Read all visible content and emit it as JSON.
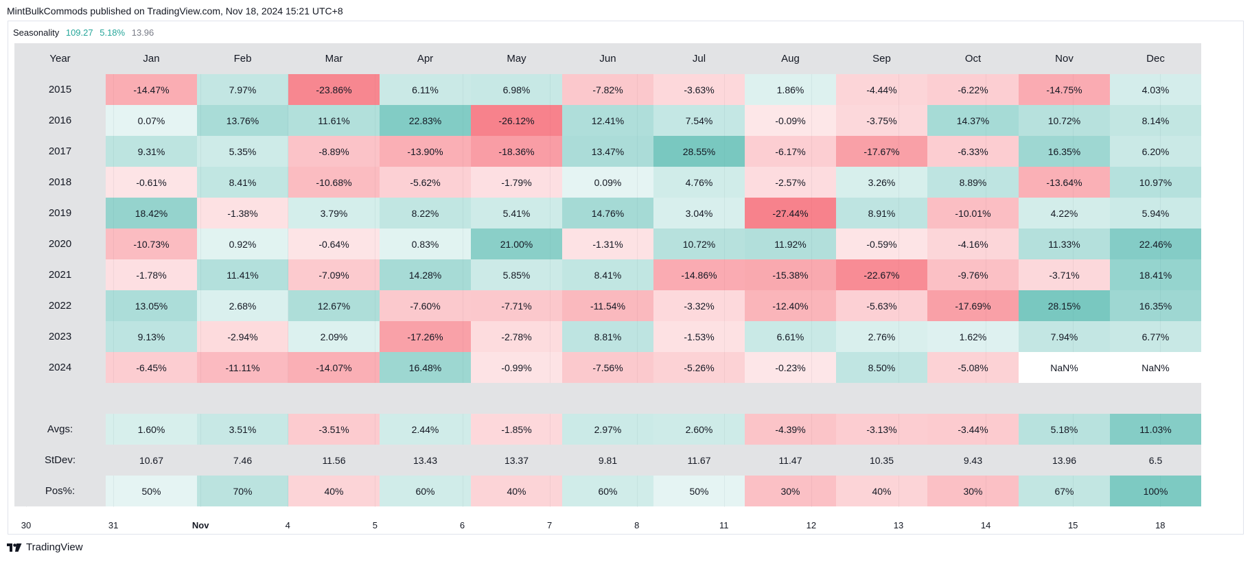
{
  "header": {
    "text": "MintBulkCommods published on TradingView.com, Nov 18, 2024 15:21 UTC+8"
  },
  "legend": {
    "name": "Seasonality",
    "value1": "109.27",
    "value2": "5.18%",
    "value3": "13.96"
  },
  "colors": {
    "positive": "#26a69a",
    "negative": "#f23645",
    "label_bg": "#e2e3e5"
  },
  "chart_data": {
    "type": "table",
    "title": "Seasonality",
    "corner_label": "Year",
    "columns": [
      "Jan",
      "Feb",
      "Mar",
      "Apr",
      "May",
      "Jun",
      "Jul",
      "Aug",
      "Sep",
      "Oct",
      "Nov",
      "Dec"
    ],
    "rows": [
      {
        "label": "2015",
        "values": [
          "-14.47%",
          "7.97%",
          "-23.86%",
          "6.11%",
          "6.98%",
          "-7.82%",
          "-3.63%",
          "1.86%",
          "-4.44%",
          "-6.22%",
          "-14.75%",
          "4.03%"
        ]
      },
      {
        "label": "2016",
        "values": [
          "0.07%",
          "13.76%",
          "11.61%",
          "22.83%",
          "-26.12%",
          "12.41%",
          "7.54%",
          "-0.09%",
          "-3.75%",
          "14.37%",
          "10.72%",
          "8.14%"
        ]
      },
      {
        "label": "2017",
        "values": [
          "9.31%",
          "5.35%",
          "-8.89%",
          "-13.90%",
          "-18.36%",
          "13.47%",
          "28.55%",
          "-6.17%",
          "-17.67%",
          "-6.33%",
          "16.35%",
          "6.20%"
        ]
      },
      {
        "label": "2018",
        "values": [
          "-0.61%",
          "8.41%",
          "-10.68%",
          "-5.62%",
          "-1.79%",
          "0.09%",
          "4.76%",
          "-2.57%",
          "3.26%",
          "8.89%",
          "-13.64%",
          "10.97%"
        ]
      },
      {
        "label": "2019",
        "values": [
          "18.42%",
          "-1.38%",
          "3.79%",
          "8.22%",
          "5.41%",
          "14.76%",
          "3.04%",
          "-27.44%",
          "8.91%",
          "-10.01%",
          "4.22%",
          "5.94%"
        ]
      },
      {
        "label": "2020",
        "values": [
          "-10.73%",
          "0.92%",
          "-0.64%",
          "0.83%",
          "21.00%",
          "-1.31%",
          "10.72%",
          "11.92%",
          "-0.59%",
          "-4.16%",
          "11.33%",
          "22.46%"
        ]
      },
      {
        "label": "2021",
        "values": [
          "-1.78%",
          "11.41%",
          "-7.09%",
          "14.28%",
          "5.85%",
          "8.41%",
          "-14.86%",
          "-15.38%",
          "-22.67%",
          "-9.76%",
          "-3.71%",
          "18.41%"
        ]
      },
      {
        "label": "2022",
        "values": [
          "13.05%",
          "2.68%",
          "12.67%",
          "-7.60%",
          "-7.71%",
          "-11.54%",
          "-3.32%",
          "-12.40%",
          "-5.63%",
          "-17.69%",
          "28.15%",
          "16.35%"
        ]
      },
      {
        "label": "2023",
        "values": [
          "9.13%",
          "-2.94%",
          "2.09%",
          "-17.26%",
          "-2.78%",
          "8.81%",
          "-1.53%",
          "6.61%",
          "2.76%",
          "1.62%",
          "7.94%",
          "6.77%"
        ]
      },
      {
        "label": "2024",
        "values": [
          "-6.45%",
          "-11.11%",
          "-14.07%",
          "16.48%",
          "-0.99%",
          "-7.56%",
          "-5.26%",
          "-0.23%",
          "8.50%",
          "-5.08%",
          "NaN%",
          "NaN%"
        ]
      }
    ],
    "summary": [
      {
        "label": "Avgs:",
        "values": [
          "1.60%",
          "3.51%",
          "-3.51%",
          "2.44%",
          "-1.85%",
          "2.97%",
          "2.60%",
          "-4.39%",
          "-3.13%",
          "-3.44%",
          "5.18%",
          "11.03%"
        ]
      },
      {
        "label": "StDev:",
        "values": [
          "10.67",
          "7.46",
          "11.56",
          "13.43",
          "13.37",
          "9.81",
          "11.67",
          "11.47",
          "10.35",
          "9.43",
          "13.96",
          "6.5"
        ]
      },
      {
        "label": "Pos%:",
        "values": [
          "50%",
          "70%",
          "40%",
          "60%",
          "40%",
          "60%",
          "50%",
          "30%",
          "40%",
          "30%",
          "67%",
          "100%"
        ]
      }
    ],
    "x_axis_labels": [
      "30",
      "31",
      "Nov",
      "4",
      "5",
      "6",
      "7",
      "8",
      "11",
      "12",
      "13",
      "14",
      "15",
      "18"
    ]
  },
  "footer": {
    "brand": "TradingView"
  }
}
